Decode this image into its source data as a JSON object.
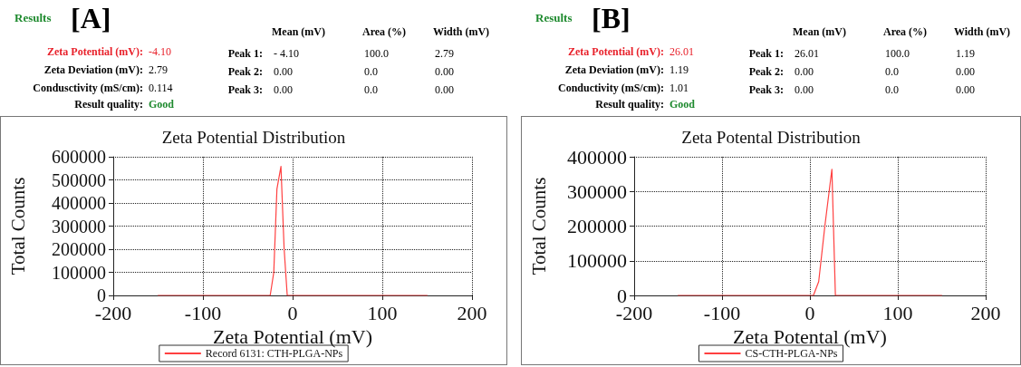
{
  "chart_data": [
    {
      "type": "line",
      "title": "Zeta Potential Distribution",
      "xlabel": "Zeta Potential (mV)",
      "ylabel": "Total Counts",
      "series": [
        {
          "name": "Record 6131: CTH-PLGA-NPs",
          "color": "#ff4040",
          "x": [
            -150,
            -25,
            -21,
            -17.5,
            -13,
            -9.5,
            -6,
            150
          ],
          "values": [
            0,
            0,
            100000,
            460000,
            558000,
            204000,
            0,
            0
          ]
        }
      ],
      "xlim": [
        -200,
        200
      ],
      "xticks": [
        -200,
        -100,
        0,
        100,
        200
      ],
      "ylim": [
        0,
        600000
      ],
      "yticks": [
        0,
        100000,
        200000,
        300000,
        400000,
        500000,
        600000
      ],
      "grid": true,
      "legend": "bottom",
      "marker": "none",
      "line_style": "solid",
      "annotations": [
        "Results",
        "[A]",
        "Zeta Potential (mV):",
        "-4.10",
        "Zeta Deviation (mV):",
        "2.79",
        "Condusctivity (mS/cm):",
        "0.114",
        "Result quality:",
        "Good",
        "Mean (mV)",
        "Area (%)",
        "Width (mV)",
        "Peak 1:",
        "- 4.10",
        "100.0",
        "2.79",
        "Peak 2:",
        "0.00",
        "0.0",
        "0.00",
        "Peak 3:",
        "0.00",
        "0.0",
        "0.00"
      ]
    },
    {
      "type": "line",
      "title": "Zeta Potental Distribution",
      "xlabel": "Zeta Potental (mV)",
      "ylabel": "Total Counts",
      "series": [
        {
          "name": "CS-CTH-PLGA-NPs",
          "color": "#ff4040",
          "x": [
            -150,
            4,
            10,
            17,
            25,
            29,
            150
          ],
          "values": [
            0,
            0,
            40000,
            200000,
            364000,
            0,
            0
          ]
        }
      ],
      "xlim": [
        -200,
        200
      ],
      "xticks": [
        -200,
        -100,
        0,
        100,
        200
      ],
      "ylim": [
        0,
        400000
      ],
      "yticks": [
        0,
        100000,
        200000,
        300000,
        400000
      ],
      "grid": true,
      "legend": "bottom",
      "marker": "none",
      "line_style": "solid",
      "annotations": [
        "Results",
        "[B]",
        "Zeta Potential (mV):",
        "26.01",
        "Zeta Deviation (mV):",
        "1.19",
        "Conductivity (mS/cm):",
        "1.01",
        "Result quality:",
        "Good",
        "Mean (mV)",
        "Area (%)",
        "Width (mV)",
        "Peak 1:",
        "26.01",
        "100.0",
        "1.19",
        "Peak 2:",
        "0.00",
        "0.0",
        "0.00",
        "Peak 3:",
        "0.00",
        "0.0",
        "0.00"
      ]
    }
  ]
}
